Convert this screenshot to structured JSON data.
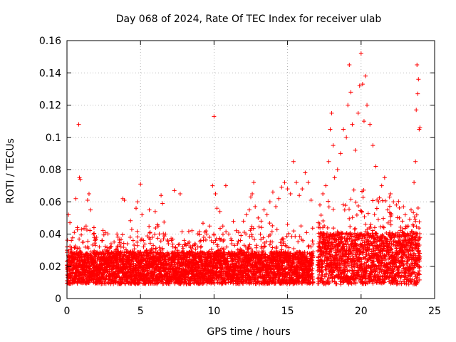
{
  "chart_data": {
    "type": "scatter",
    "title": "Day 068 of 2024, Rate Of TEC Index for receiver ulab",
    "xlabel": "GPS time / hours",
    "ylabel": "ROTI / TECUs",
    "xlim": [
      0,
      25
    ],
    "ylim": [
      0,
      0.16
    ],
    "xticks": [
      0,
      5,
      10,
      15,
      20,
      25
    ],
    "yticks": [
      0,
      0.02,
      0.04,
      0.06,
      0.08,
      0.1,
      0.12,
      0.14,
      0.16
    ],
    "xtick_labels": [
      "0",
      "5",
      "10",
      "15",
      "20",
      "25"
    ],
    "ytick_labels": [
      "0",
      "0.02",
      "0.04",
      "0.06",
      "0.08",
      "0.1",
      "0.12",
      "0.14",
      "0.16"
    ],
    "grid": true,
    "marker": "+",
    "marker_color": "#ff0000",
    "series": [
      {
        "name": "ROTI",
        "points": [
          [
            0.0,
            0.03
          ],
          [
            0.1,
            0.052
          ],
          [
            0.2,
            0.047
          ],
          [
            0.3,
            0.036
          ],
          [
            0.5,
            0.041
          ],
          [
            0.6,
            0.062
          ],
          [
            0.7,
            0.044
          ],
          [
            0.8,
            0.108
          ],
          [
            0.85,
            0.075
          ],
          [
            0.9,
            0.074
          ],
          [
            1.1,
            0.035
          ],
          [
            1.3,
            0.045
          ],
          [
            1.4,
            0.061
          ],
          [
            1.5,
            0.065
          ],
          [
            1.6,
            0.055
          ],
          [
            1.8,
            0.04
          ],
          [
            2.0,
            0.038
          ],
          [
            2.2,
            0.032
          ],
          [
            2.4,
            0.036
          ],
          [
            2.6,
            0.041
          ],
          [
            2.8,
            0.03
          ],
          [
            3.0,
            0.034
          ],
          [
            3.2,
            0.029
          ],
          [
            3.4,
            0.04
          ],
          [
            3.6,
            0.028
          ],
          [
            3.8,
            0.062
          ],
          [
            3.9,
            0.061
          ],
          [
            4.1,
            0.034
          ],
          [
            4.3,
            0.038
          ],
          [
            4.5,
            0.036
          ],
          [
            4.7,
            0.056
          ],
          [
            4.8,
            0.06
          ],
          [
            5.0,
            0.071
          ],
          [
            5.1,
            0.052
          ],
          [
            5.2,
            0.036
          ],
          [
            5.4,
            0.03
          ],
          [
            5.6,
            0.055
          ],
          [
            5.8,
            0.038
          ],
          [
            6.0,
            0.054
          ],
          [
            6.2,
            0.045
          ],
          [
            6.4,
            0.064
          ],
          [
            6.5,
            0.059
          ],
          [
            6.7,
            0.04
          ],
          [
            6.9,
            0.034
          ],
          [
            7.1,
            0.036
          ],
          [
            7.3,
            0.067
          ],
          [
            7.5,
            0.03
          ],
          [
            7.7,
            0.065
          ],
          [
            7.9,
            0.031
          ],
          [
            8.1,
            0.033
          ],
          [
            8.3,
            0.035
          ],
          [
            8.5,
            0.031
          ],
          [
            8.7,
            0.034
          ],
          [
            8.9,
            0.032
          ],
          [
            9.1,
            0.036
          ],
          [
            9.3,
            0.038
          ],
          [
            9.5,
            0.04
          ],
          [
            9.7,
            0.045
          ],
          [
            9.9,
            0.07
          ],
          [
            10.0,
            0.113
          ],
          [
            10.1,
            0.065
          ],
          [
            10.2,
            0.056
          ],
          [
            10.4,
            0.054
          ],
          [
            10.6,
            0.045
          ],
          [
            10.8,
            0.07
          ],
          [
            11.0,
            0.04
          ],
          [
            11.2,
            0.036
          ],
          [
            11.4,
            0.033
          ],
          [
            11.6,
            0.034
          ],
          [
            11.8,
            0.036
          ],
          [
            12.0,
            0.048
          ],
          [
            12.2,
            0.052
          ],
          [
            12.4,
            0.055
          ],
          [
            12.5,
            0.063
          ],
          [
            12.6,
            0.065
          ],
          [
            12.7,
            0.072
          ],
          [
            12.8,
            0.057
          ],
          [
            13.0,
            0.05
          ],
          [
            13.2,
            0.048
          ],
          [
            13.4,
            0.055
          ],
          [
            13.6,
            0.052
          ],
          [
            13.8,
            0.06
          ],
          [
            14.0,
            0.066
          ],
          [
            14.2,
            0.057
          ],
          [
            14.4,
            0.062
          ],
          [
            14.6,
            0.069
          ],
          [
            14.8,
            0.072
          ],
          [
            15.0,
            0.068
          ],
          [
            15.2,
            0.065
          ],
          [
            15.4,
            0.085
          ],
          [
            15.6,
            0.072
          ],
          [
            15.8,
            0.064
          ],
          [
            16.0,
            0.068
          ],
          [
            16.2,
            0.078
          ],
          [
            16.4,
            0.072
          ],
          [
            16.6,
            0.061
          ],
          [
            17.2,
            0.058
          ],
          [
            17.4,
            0.065
          ],
          [
            17.6,
            0.07
          ],
          [
            17.8,
            0.085
          ],
          [
            17.9,
            0.105
          ],
          [
            18.0,
            0.115
          ],
          [
            18.1,
            0.095
          ],
          [
            18.2,
            0.075
          ],
          [
            18.4,
            0.08
          ],
          [
            18.6,
            0.09
          ],
          [
            18.8,
            0.105
          ],
          [
            19.0,
            0.1
          ],
          [
            19.1,
            0.12
          ],
          [
            19.2,
            0.145
          ],
          [
            19.3,
            0.128
          ],
          [
            19.4,
            0.108
          ],
          [
            19.6,
            0.092
          ],
          [
            19.8,
            0.115
          ],
          [
            19.9,
            0.132
          ],
          [
            20.0,
            0.152
          ],
          [
            20.1,
            0.133
          ],
          [
            20.2,
            0.11
          ],
          [
            20.3,
            0.138
          ],
          [
            20.4,
            0.12
          ],
          [
            20.6,
            0.108
          ],
          [
            20.8,
            0.095
          ],
          [
            21.0,
            0.082
          ],
          [
            21.2,
            0.06
          ],
          [
            21.4,
            0.07
          ],
          [
            21.6,
            0.075
          ],
          [
            21.8,
            0.055
          ],
          [
            22.0,
            0.065
          ],
          [
            22.2,
            0.06
          ],
          [
            22.4,
            0.058
          ],
          [
            22.6,
            0.05
          ],
          [
            22.8,
            0.048
          ],
          [
            23.0,
            0.052
          ],
          [
            23.2,
            0.045
          ],
          [
            23.4,
            0.055
          ],
          [
            23.6,
            0.072
          ],
          [
            23.7,
            0.085
          ],
          [
            23.75,
            0.117
          ],
          [
            23.8,
            0.145
          ],
          [
            23.85,
            0.127
          ],
          [
            23.9,
            0.136
          ],
          [
            23.95,
            0.105
          ],
          [
            24.0,
            0.106
          ]
        ],
        "dense_band": {
          "description": "continuous measurements every few minutes",
          "ranges": [
            [
              0.0,
              16.75
            ],
            [
              17.05,
              24.0
            ]
          ]
        }
      }
    ]
  }
}
